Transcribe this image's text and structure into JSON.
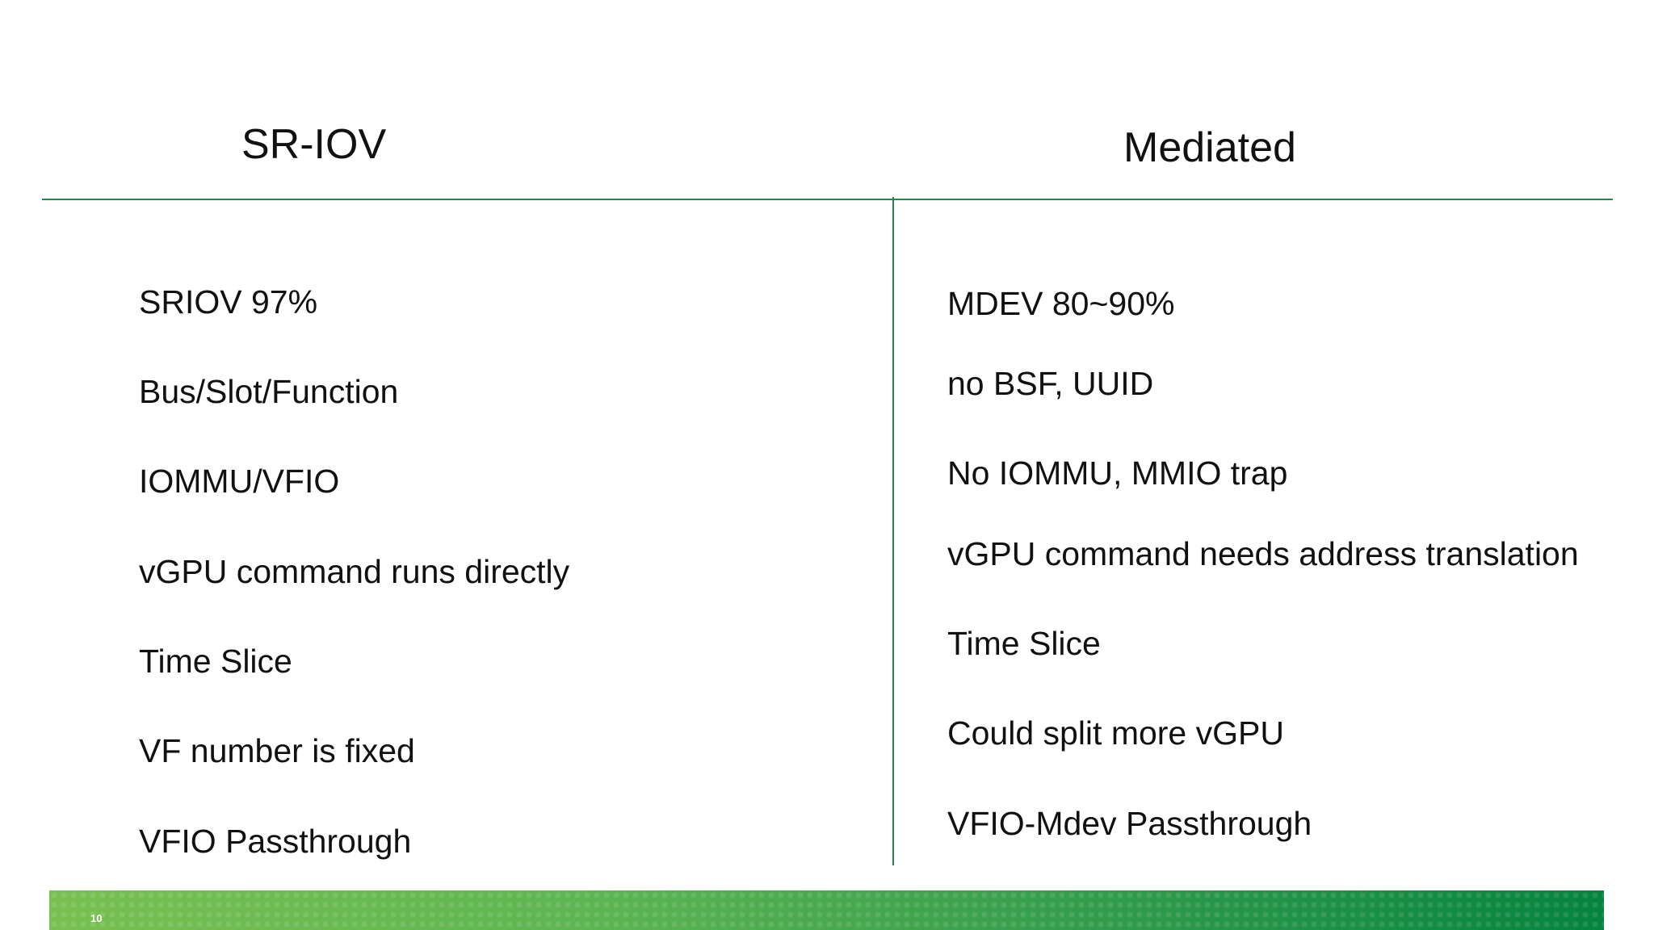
{
  "slide": {
    "left_column": {
      "title": "SR-IOV",
      "items": [
        "SRIOV  97%",
        "Bus/Slot/Function",
        "IOMMU/VFIO",
        "vGPU command runs directly",
        "Time Slice",
        "VF number is fixed",
        "VFIO Passthrough"
      ]
    },
    "right_column": {
      "title": "Mediated",
      "items": [
        "MDEV  80~90%",
        "no BSF, UUID",
        "No IOMMU,  MMIO trap",
        "vGPU command needs address translation",
        "Time Slice",
        "Could split more vGPU",
        "VFIO-Mdev Passthrough"
      ]
    },
    "footer": {
      "page_number": "10"
    },
    "colors": {
      "divider": "#1e8a4a",
      "footer_start": "#78c051",
      "footer_end": "#05843f"
    }
  }
}
